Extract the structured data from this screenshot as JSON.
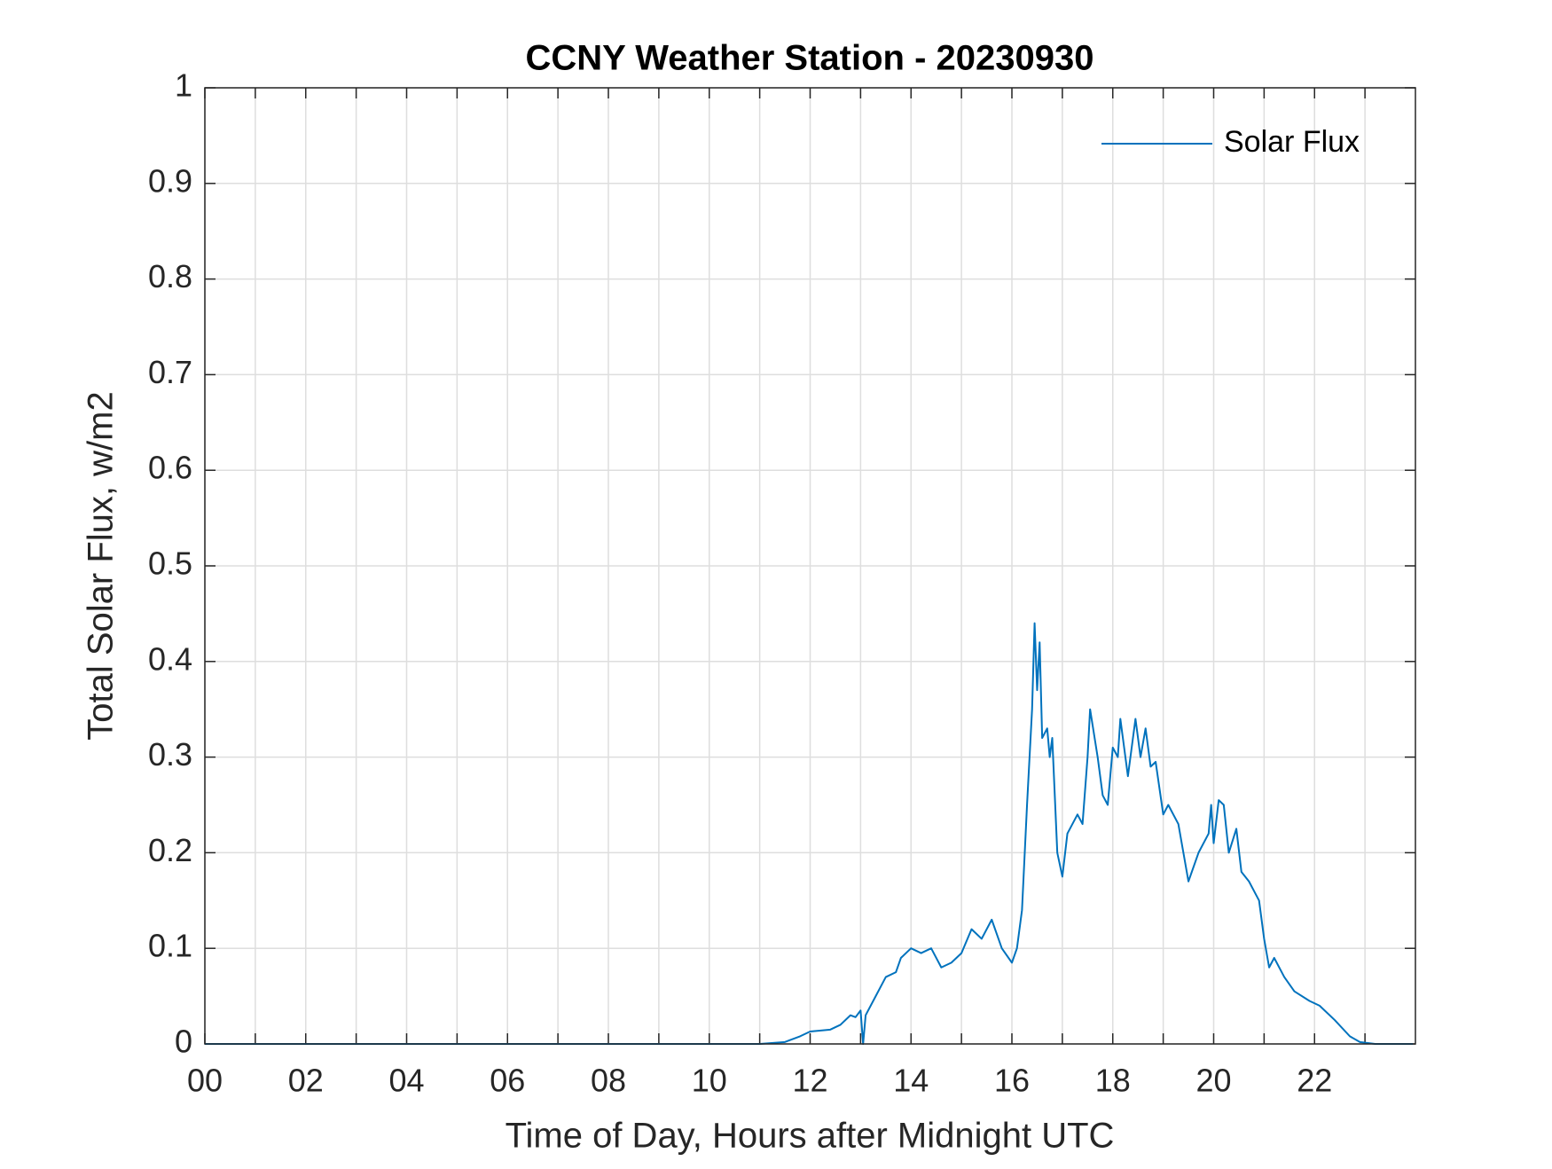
{
  "chart_data": {
    "type": "line",
    "title": "CCNY Weather Station - 20230930",
    "x_label": "Time of Day, Hours after Midnight UTC",
    "y_label": "Total Solar Flux, w/m2",
    "xlim": [
      0,
      24
    ],
    "ylim": [
      0,
      1
    ],
    "xticks": [
      {
        "value": 0,
        "label": "00"
      },
      {
        "value": 2,
        "label": "02"
      },
      {
        "value": 4,
        "label": "04"
      },
      {
        "value": 6,
        "label": "06"
      },
      {
        "value": 8,
        "label": "08"
      },
      {
        "value": 10,
        "label": "10"
      },
      {
        "value": 12,
        "label": "12"
      },
      {
        "value": 14,
        "label": "14"
      },
      {
        "value": 16,
        "label": "16"
      },
      {
        "value": 18,
        "label": "18"
      },
      {
        "value": 20,
        "label": "20"
      },
      {
        "value": 22,
        "label": "22"
      }
    ],
    "xminorticks": [
      1,
      3,
      5,
      7,
      9,
      11,
      13,
      15,
      17,
      19,
      21,
      23
    ],
    "yticks": [
      0,
      0.1,
      0.2,
      0.3,
      0.4,
      0.5,
      0.6,
      0.7,
      0.8,
      0.9,
      1
    ],
    "grid": true,
    "legend": "top-right",
    "x": [
      0,
      11,
      11.5,
      11.8,
      12,
      12.4,
      12.6,
      12.8,
      12.9,
      13,
      13.05,
      13.1,
      13.3,
      13.5,
      13.7,
      13.8,
      14,
      14.2,
      14.4,
      14.6,
      14.8,
      15,
      15.2,
      15.4,
      15.6,
      15.8,
      16,
      16.1,
      16.2,
      16.3,
      16.4,
      16.45,
      16.5,
      16.55,
      16.6,
      16.7,
      16.75,
      16.8,
      16.9,
      17,
      17.1,
      17.3,
      17.4,
      17.5,
      17.55,
      17.7,
      17.8,
      17.9,
      18,
      18.1,
      18.15,
      18.3,
      18.45,
      18.55,
      18.65,
      18.75,
      18.85,
      19,
      19.1,
      19.3,
      19.5,
      19.7,
      19.9,
      19.95,
      20,
      20.1,
      20.2,
      20.3,
      20.45,
      20.55,
      20.7,
      20.9,
      21,
      21.1,
      21.2,
      21.4,
      21.6,
      21.9,
      22.1,
      22.4,
      22.7,
      22.9,
      23.2,
      23.95
    ],
    "series": [
      {
        "name": "Solar Flux",
        "color": "#0072bd",
        "values": [
          0,
          0,
          0.002,
          0.008,
          0.013,
          0.015,
          0.02,
          0.03,
          0.028,
          0.035,
          0,
          0.03,
          0.05,
          0.07,
          0.075,
          0.09,
          0.1,
          0.095,
          0.1,
          0.08,
          0.085,
          0.095,
          0.12,
          0.11,
          0.13,
          0.1,
          0.085,
          0.1,
          0.14,
          0.25,
          0.35,
          0.44,
          0.37,
          0.42,
          0.32,
          0.33,
          0.3,
          0.32,
          0.2,
          0.175,
          0.22,
          0.24,
          0.23,
          0.3,
          0.35,
          0.3,
          0.26,
          0.25,
          0.31,
          0.3,
          0.34,
          0.28,
          0.34,
          0.3,
          0.33,
          0.29,
          0.295,
          0.24,
          0.25,
          0.23,
          0.17,
          0.2,
          0.22,
          0.25,
          0.21,
          0.255,
          0.25,
          0.2,
          0.225,
          0.18,
          0.17,
          0.15,
          0.11,
          0.08,
          0.09,
          0.07,
          0.055,
          0.045,
          0.04,
          0.025,
          0.008,
          0.002,
          0,
          0
        ]
      }
    ]
  }
}
